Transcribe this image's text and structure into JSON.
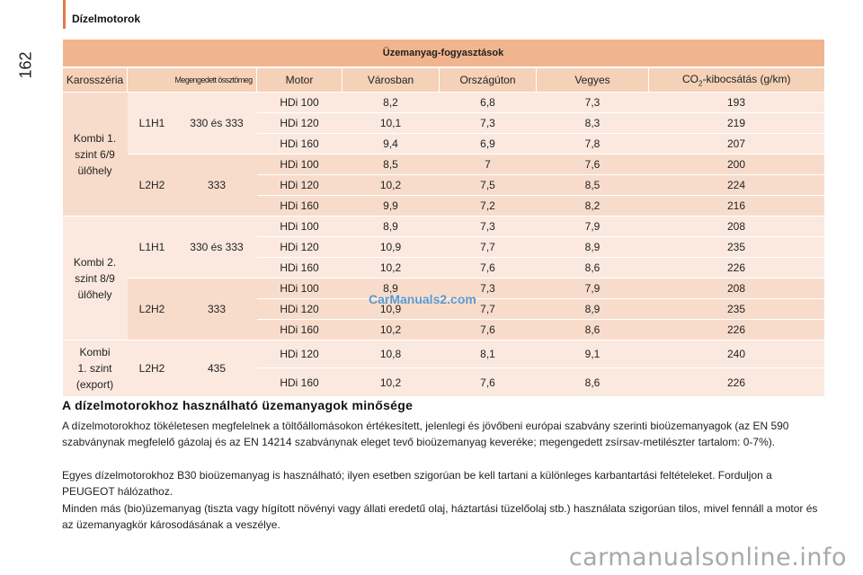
{
  "header": {
    "section_title": "Dízelmotorok",
    "page_number": "162"
  },
  "table": {
    "title": "Üzemanyag-fogyasztások",
    "columns": [
      "Karosszéria",
      "Megengedett össztömeg",
      "Motor",
      "Városban",
      "Országúton",
      "Vegyes",
      "CO",
      "2",
      "-kibocsátás (g/km)"
    ],
    "groups": [
      {
        "body": [
          "Kombi 1.",
          "szint 6/9",
          "ülőhely"
        ],
        "subgroups": [
          {
            "size": "L1H1",
            "mass": "330 és 333",
            "rows": [
              [
                "HDi 100",
                "8,2",
                "6,8",
                "7,3",
                "193"
              ],
              [
                "HDi 120",
                "10,1",
                "7,3",
                "8,3",
                "219"
              ],
              [
                "HDi 160",
                "9,4",
                "6,9",
                "7,8",
                "207"
              ]
            ]
          },
          {
            "size": "L2H2",
            "mass": "333",
            "rows": [
              [
                "HDi 100",
                "8,5",
                "7",
                "7,6",
                "200"
              ],
              [
                "HDi 120",
                "10,2",
                "7,5",
                "8,5",
                "224"
              ],
              [
                "HDi 160",
                "9,9",
                "7,2",
                "8,2",
                "216"
              ]
            ]
          }
        ]
      },
      {
        "body": [
          "Kombi 2.",
          "szint 8/9",
          "ülőhely"
        ],
        "subgroups": [
          {
            "size": "L1H1",
            "mass": "330 és 333",
            "rows": [
              [
                "HDi 100",
                "8,9",
                "7,3",
                "7,9",
                "208"
              ],
              [
                "HDi 120",
                "10,9",
                "7,7",
                "8,9",
                "235"
              ],
              [
                "HDi 160",
                "10,2",
                "7,6",
                "8,6",
                "226"
              ]
            ]
          },
          {
            "size": "L2H2",
            "mass": "333",
            "rows": [
              [
                "HDi 100",
                "8,9",
                "7,3",
                "7,9",
                "208"
              ],
              [
                "HDi 120",
                "10,9",
                "7,7",
                "8,9",
                "235"
              ],
              [
                "HDi 160",
                "10,2",
                "7,6",
                "8,6",
                "226"
              ]
            ]
          }
        ]
      },
      {
        "body": [
          "Kombi",
          "1. szint",
          "(export)"
        ],
        "subgroups": [
          {
            "size": "L2H2",
            "mass": "435",
            "rows": [
              [
                "HDi 120",
                "10,8",
                "8,1",
                "9,1",
                "240"
              ],
              [
                "HDi 160",
                "10,2",
                "7,6",
                "8,6",
                "226"
              ]
            ]
          }
        ]
      }
    ]
  },
  "watermark_top": "CarManuals2.com",
  "section": {
    "heading": "A dízelmotorokhoz használható üzemanyagok minősége",
    "p1": "A dízelmotorokhoz tökéletesen megfelelnek a töltőállomásokon értékesített, jelenlegi és jövőbeni európai szabvány szerinti bioüzemanyagok (az EN 590 szabványnak megfelelő gázolaj és az EN 14214 szabványnak eleget tevő bioüzemanyag keveréke; megengedett zsírsav-metilészter tartalom: 0-7%).",
    "p2": "Egyes dízelmotorokhoz B30 bioüzemanyag is használható; ilyen esetben szigorúan be kell tartani a különleges karbantartási feltételeket. Forduljon a PEUGEOT hálózathoz.",
    "p3": "Minden más (bio)üzemanyag (tiszta vagy hígított növényi vagy állati eredetű olaj, háztartási tüzelőolaj stb.) használata szigorúan tilos, mivel fennáll a motor és az üzemanyagkör károsodásának a veszélye."
  },
  "watermark_bottom": "carmanualsonline.info",
  "colors": {
    "accent": "#e07b4a",
    "title_bg": "#f0b48e",
    "head_bg": "#f5d1b8",
    "row_light": "#fbe9df",
    "row_mid": "#f8dccb"
  }
}
